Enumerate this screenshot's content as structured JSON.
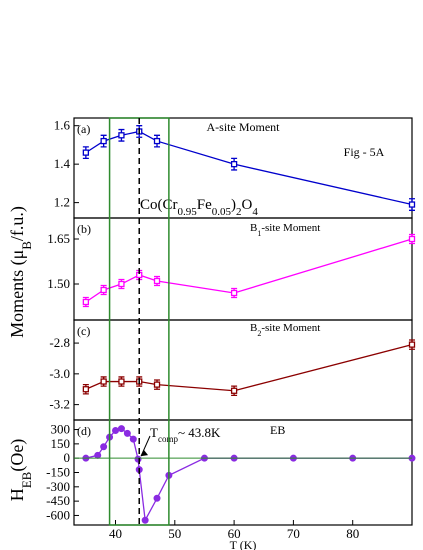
{
  "chart_data": [
    {
      "type": "line",
      "label": "(a)",
      "annotation": "A-site Moment",
      "fig_label": "Fig - 5A",
      "formula": [
        "Co(Cr",
        "0.95",
        "Fe",
        "0.05",
        ")",
        "2",
        "O",
        "4"
      ],
      "color": "#0000cc",
      "x": [
        35,
        38,
        41,
        44,
        47,
        60,
        90
      ],
      "values": [
        1.46,
        1.52,
        1.55,
        1.57,
        1.52,
        1.4,
        1.19
      ],
      "errors": [
        0.03,
        0.03,
        0.03,
        0.03,
        0.03,
        0.03,
        0.03
      ],
      "xlim": [
        33,
        90
      ],
      "ylim": [
        1.12,
        1.64
      ],
      "yticks": [
        1.2,
        1.4,
        1.6
      ],
      "highlight_range": [
        39,
        49
      ],
      "dashed_x": 44,
      "highlight_color": "#2e8b2e"
    },
    {
      "type": "line",
      "label": "(b)",
      "annotation": [
        "B",
        "1",
        "-site Moment"
      ],
      "ylabel": [
        "Moments (μ",
        "B",
        "/f.u.)"
      ],
      "color": "#ff00ff",
      "x": [
        35,
        38,
        41,
        44,
        47,
        60,
        90
      ],
      "values": [
        1.44,
        1.48,
        1.5,
        1.53,
        1.51,
        1.47,
        1.65
      ],
      "errors": [
        0.015,
        0.015,
        0.015,
        0.015,
        0.015,
        0.015,
        0.015
      ],
      "xlim": [
        33,
        90
      ],
      "ylim": [
        1.38,
        1.72
      ],
      "yticks": [
        {
          "value": 1.5,
          "label": "1.50"
        },
        1.65
      ]
    },
    {
      "type": "line",
      "label": "(c)",
      "annotation": [
        "B",
        "2",
        "-site Moment"
      ],
      "color": "#8b0000",
      "x": [
        35,
        38,
        41,
        44,
        47,
        60,
        90
      ],
      "values": [
        -3.1,
        -3.05,
        -3.05,
        -3.05,
        -3.07,
        -3.11,
        -2.81
      ],
      "errors": [
        0.03,
        0.03,
        0.03,
        0.03,
        0.03,
        0.03,
        0.03
      ],
      "xlim": [
        33,
        90
      ],
      "ylim": [
        -3.3,
        -2.65
      ],
      "yticks": [
        -3.2,
        {
          "value": -3.0,
          "label": "-3.0"
        },
        -2.8
      ]
    },
    {
      "type": "line",
      "label": "(d)",
      "annotation": [
        "T",
        "comp",
        "~ 43.8K"
      ],
      "annotation2": "EB",
      "ylabel": [
        "H",
        "EB",
        "(Oe)"
      ],
      "xlabel": "T (K)",
      "color": "#8a2be2",
      "x": [
        35,
        37,
        38,
        39,
        40,
        41,
        42,
        43,
        43.8,
        44,
        45,
        47,
        49,
        55,
        60,
        70,
        80,
        90
      ],
      "values": [
        0,
        30,
        120,
        220,
        290,
        310,
        260,
        200,
        -10,
        -120,
        -650,
        -420,
        -180,
        0,
        0,
        0,
        0,
        0
      ],
      "xlim": [
        33,
        90
      ],
      "ylim": [
        -700,
        400
      ],
      "yticks": [
        -600,
        -450,
        -300,
        -150,
        0,
        150,
        300
      ],
      "xticks": [
        40,
        50,
        60,
        70,
        80
      ]
    }
  ]
}
